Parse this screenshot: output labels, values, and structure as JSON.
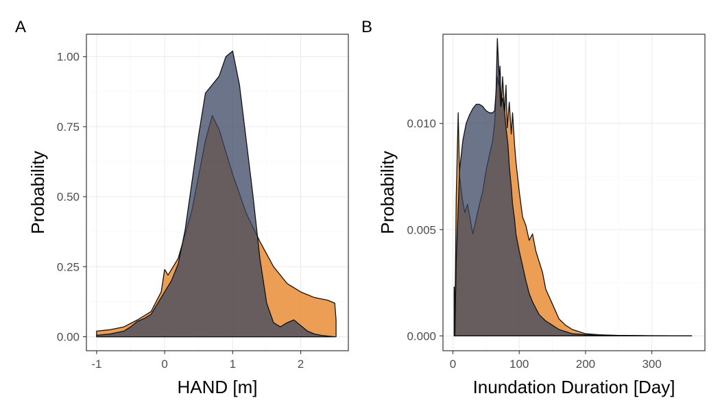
{
  "colors": {
    "series_a": "#e8862a",
    "series_b": "#3a4662",
    "overlap": "#5a4a4a"
  },
  "chart_data": [
    {
      "panel": "A",
      "type": "area",
      "xlabel": "HAND [m]",
      "ylabel": "Probability",
      "xlim": [
        -1.15,
        2.7
      ],
      "ylim": [
        -0.05,
        1.08
      ],
      "x_ticks": [
        -1,
        0,
        1,
        2
      ],
      "x_tick_labels": [
        "-1",
        "0",
        "1",
        "2"
      ],
      "y_ticks": [
        0,
        0.25,
        0.5,
        0.75,
        1.0
      ],
      "y_tick_labels": [
        "0.00",
        "0.25",
        "0.50",
        "0.75",
        "1.00"
      ],
      "grid": true,
      "series": [
        {
          "color": "#e8862a",
          "x": [
            -1.0,
            -0.8,
            -0.6,
            -0.4,
            -0.2,
            -0.05,
            0.0,
            0.05,
            0.2,
            0.4,
            0.6,
            0.7,
            0.8,
            1.0,
            1.2,
            1.4,
            1.6,
            1.8,
            2.0,
            2.2,
            2.4,
            2.5,
            2.52
          ],
          "y": [
            0.02,
            0.025,
            0.035,
            0.06,
            0.09,
            0.16,
            0.24,
            0.22,
            0.28,
            0.45,
            0.7,
            0.79,
            0.74,
            0.58,
            0.44,
            0.34,
            0.25,
            0.19,
            0.16,
            0.14,
            0.13,
            0.12,
            0.06
          ]
        },
        {
          "color": "#3a4662",
          "x": [
            -1.0,
            -0.8,
            -0.6,
            -0.5,
            -0.4,
            -0.3,
            -0.2,
            -0.1,
            0.0,
            0.1,
            0.2,
            0.3,
            0.4,
            0.5,
            0.6,
            0.7,
            0.8,
            0.9,
            1.0,
            1.1,
            1.2,
            1.3,
            1.4,
            1.5,
            1.6,
            1.7,
            1.8,
            1.9,
            2.0,
            2.1,
            2.2,
            2.3,
            2.4,
            2.5
          ],
          "y": [
            0.005,
            0.01,
            0.02,
            0.035,
            0.055,
            0.065,
            0.08,
            0.12,
            0.16,
            0.2,
            0.26,
            0.38,
            0.55,
            0.72,
            0.87,
            0.9,
            0.93,
            1.0,
            1.02,
            0.9,
            0.7,
            0.5,
            0.28,
            0.12,
            0.05,
            0.035,
            0.05,
            0.06,
            0.04,
            0.02,
            0.01,
            0.005,
            0.002,
            0.0
          ]
        }
      ]
    },
    {
      "panel": "B",
      "type": "area",
      "xlabel": "Inundation Duration [Day]",
      "ylabel": "Probability",
      "xlim": [
        -15,
        380
      ],
      "ylim": [
        -0.0007,
        0.0142
      ],
      "x_ticks": [
        0,
        100,
        200,
        300
      ],
      "x_tick_labels": [
        "0",
        "100",
        "200",
        "300"
      ],
      "y_ticks": [
        0,
        0.005,
        0.01
      ],
      "y_tick_labels": [
        "0.000",
        "0.005",
        "0.010"
      ],
      "grid": true,
      "series": [
        {
          "color": "#e8862a",
          "x": [
            2,
            3,
            5,
            8,
            10,
            14,
            18,
            22,
            26,
            30,
            35,
            40,
            45,
            50,
            55,
            60,
            63,
            65,
            67,
            69,
            71,
            73,
            75,
            78,
            80,
            82,
            85,
            88,
            90,
            93,
            95,
            100,
            105,
            110,
            115,
            120,
            125,
            130,
            135,
            140,
            150,
            160,
            170,
            180,
            200,
            220,
            250,
            280,
            300,
            330,
            360
          ],
          "y": [
            0.0023,
            0.0005,
            0.0065,
            0.0105,
            0.0075,
            0.0065,
            0.0058,
            0.0062,
            0.0055,
            0.0048,
            0.0055,
            0.0062,
            0.0068,
            0.0078,
            0.0085,
            0.0092,
            0.01,
            0.0115,
            0.0122,
            0.0118,
            0.0127,
            0.0108,
            0.0122,
            0.0105,
            0.0118,
            0.0098,
            0.011,
            0.0095,
            0.0105,
            0.009,
            0.0082,
            0.0068,
            0.0056,
            0.0052,
            0.0045,
            0.0048,
            0.004,
            0.0035,
            0.003,
            0.0022,
            0.0015,
            0.0008,
            0.0005,
            0.0003,
            0.0001,
            5e-05,
            2e-05,
            1e-05,
            0.0,
            0.0,
            0.0
          ]
        },
        {
          "color": "#3a4662",
          "x": [
            2,
            3,
            5,
            8,
            10,
            15,
            20,
            25,
            30,
            35,
            40,
            45,
            50,
            55,
            60,
            63,
            65,
            67,
            70,
            72,
            75,
            78,
            80,
            83,
            85,
            88,
            90,
            93,
            95,
            100,
            105,
            110,
            115,
            120,
            125,
            130,
            140,
            150,
            160,
            170,
            180,
            200,
            250,
            300,
            360
          ],
          "y": [
            0.0023,
            0.0,
            0.0035,
            0.006,
            0.0078,
            0.0092,
            0.01,
            0.0104,
            0.0107,
            0.0109,
            0.0109,
            0.0108,
            0.0106,
            0.0105,
            0.0105,
            0.0106,
            0.0115,
            0.014,
            0.012,
            0.0108,
            0.0112,
            0.0105,
            0.0098,
            0.009,
            0.008,
            0.007,
            0.0062,
            0.0055,
            0.0048,
            0.004,
            0.0033,
            0.0026,
            0.002,
            0.0016,
            0.0013,
            0.001,
            0.0007,
            0.0005,
            0.0003,
            0.0002,
            0.0001,
            5e-05,
            2e-05,
            1e-05,
            0.0
          ]
        }
      ]
    }
  ]
}
